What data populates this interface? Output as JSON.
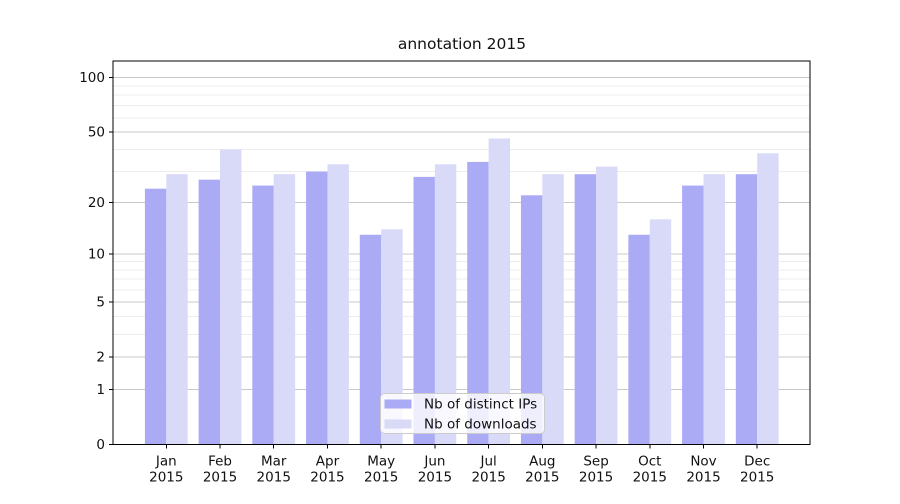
{
  "chart_data": {
    "type": "bar",
    "title": "annotation 2015",
    "categories": [
      "Jan",
      "Feb",
      "Mar",
      "Apr",
      "May",
      "Jun",
      "Jul",
      "Aug",
      "Sep",
      "Oct",
      "Nov",
      "Dec"
    ],
    "category_year_line": "2015",
    "series": [
      {
        "name": "Nb of distinct IPs",
        "color": "#aaaaf5",
        "values": [
          24,
          27,
          25,
          30,
          13,
          28,
          34,
          22,
          29,
          13,
          25,
          29
        ]
      },
      {
        "name": "Nb of downloads",
        "color": "#d9d9f8",
        "values": [
          29,
          40,
          29,
          33,
          14,
          33,
          46,
          29,
          32,
          16,
          29,
          38
        ]
      }
    ],
    "yscale": "symlog",
    "ylim": [
      0,
      126
    ],
    "yticks": [
      0,
      1,
      2,
      5,
      10,
      20,
      50,
      100
    ],
    "yticks_minor": [
      3,
      4,
      6,
      7,
      8,
      9,
      30,
      40,
      60,
      70,
      80,
      90
    ],
    "grid": "on",
    "legend_position": "lower center",
    "colors": {
      "grid_major": "#c9c9c9",
      "grid_minor": "#ededed",
      "spine": "#000000",
      "text": "#111111",
      "legend_bg": "rgba(255,255,255,0.8)",
      "legend_border": "#cccccc",
      "background": "#ffffff"
    }
  }
}
